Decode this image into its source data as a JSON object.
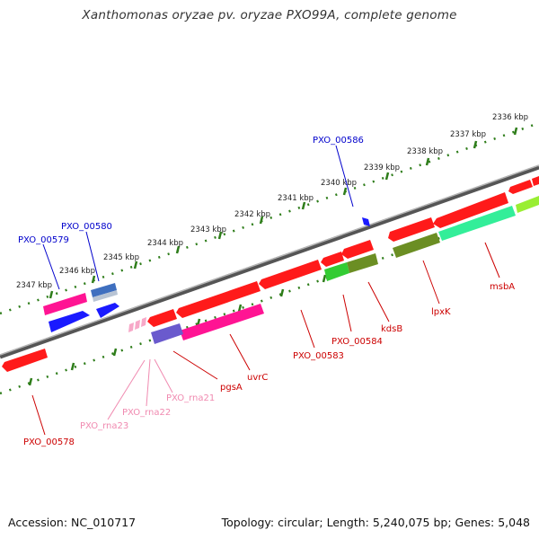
{
  "title": "Xanthomonas oryzae pv. oryzae PXO99A, complete genome",
  "footer": {
    "accession": "Accession: NC_010717",
    "summary": "Topology: circular; Length: 5,240,075 bp; Genes: 5,048"
  },
  "colors": {
    "backbone": "#8a8a8a",
    "tick_dots": "#2e7d1a",
    "forward_label": "#0000cc",
    "reverse_label": "#cc0000",
    "rna_label": "#f08ab0",
    "gene_red": "#ff1a1a",
    "gene_blue": "#1a1aff",
    "gene_magenta": "#ff1493",
    "gene_green": "#33cc33",
    "gene_olive": "#6b8e23",
    "gene_mint": "#33ee99",
    "gene_lime": "#99ee33",
    "gene_slate": "#3f6fbf",
    "gene_violet": "#6a5acd"
  },
  "kbp_outer": [
    {
      "label": "2336 kbp"
    },
    {
      "label": "2337 kbp"
    },
    {
      "label": "2338 kbp"
    },
    {
      "label": "2339 kbp"
    },
    {
      "label": "2340 kbp"
    },
    {
      "label": "2341 kbp"
    },
    {
      "label": "2342 kbp"
    },
    {
      "label": "2343 kbp"
    },
    {
      "label": "2344 kbp"
    },
    {
      "label": "2345 kbp"
    },
    {
      "label": "2346 kbp"
    },
    {
      "label": "2347 kbp"
    }
  ],
  "gene_labels": {
    "PXO_00586": "PXO_00586",
    "PXO_00580": "PXO_00580",
    "PXO_00579": "PXO_00579",
    "msbA": "msbA",
    "lpxK": "lpxK",
    "kdsB": "kdsB",
    "PXO_00584": "PXO_00584",
    "PXO_00583": "PXO_00583",
    "uvrC": "uvrC",
    "pgsA": "pgsA",
    "PXO_rna21": "PXO_rna21",
    "PXO_rna22": "PXO_rna22",
    "PXO_rna23": "PXO_rna23",
    "PXO_00578": "PXO_00578"
  }
}
